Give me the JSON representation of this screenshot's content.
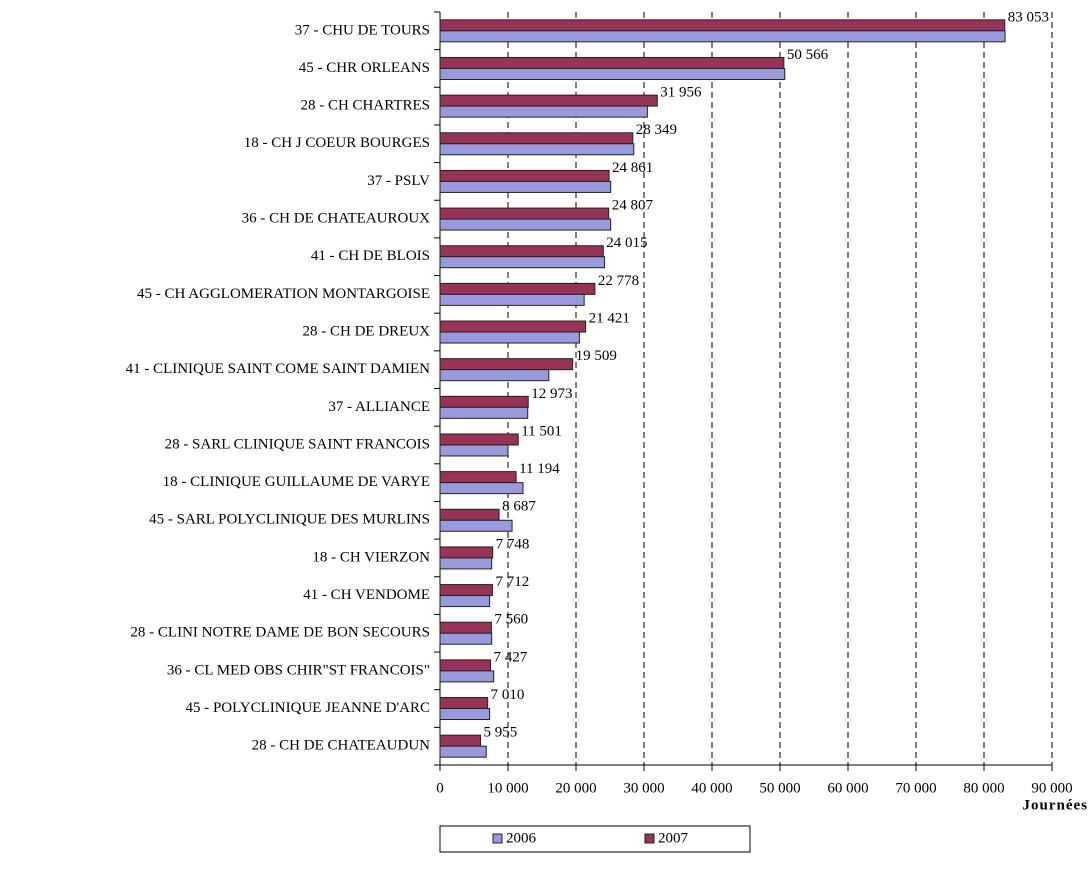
{
  "chart_data": {
    "type": "hbar",
    "x_label": "Journées",
    "categories": [
      "37 - CHU  DE TOURS",
      "45 - CHR  ORLEANS",
      "28 - CH CHARTRES",
      "18 - CH J COEUR  BOURGES",
      "37 - PSLV",
      "36 - CH DE CHATEAUROUX",
      "41 - CH DE BLOIS",
      "45 - CH AGGLOMERATION MONTARGOISE",
      "28 - CH DE DREUX",
      "41 - CLINIQUE SAINT COME SAINT DAMIEN",
      "37 - ALLIANCE",
      "28 - SARL CLINIQUE SAINT FRANCOIS",
      "18 - CLINIQUE GUILLAUME DE VARYE",
      "45 - SARL POLYCLINIQUE DES MURLINS",
      "18 - CH VIERZON",
      "41 - CH VENDOME",
      "28 - CLINI NOTRE DAME DE BON SECOURS",
      "36 - CL MED OBS CHIR\"ST FRANCOIS\"",
      "45 - POLYCLINIQUE JEANNE D'ARC",
      "28 - CH DE CHATEAUDUN"
    ],
    "series": [
      {
        "name": "2006",
        "color": "#9999dd",
        "values": [
          83100,
          50700,
          30500,
          28500,
          25100,
          25100,
          24200,
          21200,
          20500,
          16000,
          12900,
          10000,
          12200,
          10600,
          7600,
          7300,
          7600,
          7900,
          7300,
          6800
        ]
      },
      {
        "name": "2007",
        "color": "#993355",
        "values": [
          83053,
          50566,
          31956,
          28349,
          24861,
          24807,
          24015,
          22778,
          21421,
          19509,
          12973,
          11501,
          11194,
          8687,
          7748,
          7712,
          7560,
          7427,
          7010,
          5955
        ],
        "value_labels": [
          "83 053",
          "50 566",
          "31 956",
          "28 349",
          "24 861",
          "24 807",
          "24 015",
          "22 778",
          "21 421",
          "19 509",
          "12 973",
          "11 501",
          "11 194",
          "8 687",
          "7 748",
          "7 712",
          "7 560",
          "7 427",
          "7 010",
          "5 955"
        ]
      }
    ],
    "xlim": [
      0,
      90000
    ],
    "xticks": [
      0,
      {
        "value": 10000,
        "label": "10 000"
      },
      {
        "value": 20000,
        "label": "20 000"
      },
      {
        "value": 30000,
        "label": "30 000"
      },
      {
        "value": 40000,
        "label": "40 000"
      },
      {
        "value": 50000,
        "label": "50 000"
      },
      {
        "value": 60000,
        "label": "60 000"
      },
      {
        "value": 70000,
        "label": "70 000"
      },
      {
        "value": 80000,
        "label": "80 000"
      },
      {
        "value": 90000,
        "label": "90 000"
      }
    ],
    "grid": true,
    "legend": "bottom"
  }
}
